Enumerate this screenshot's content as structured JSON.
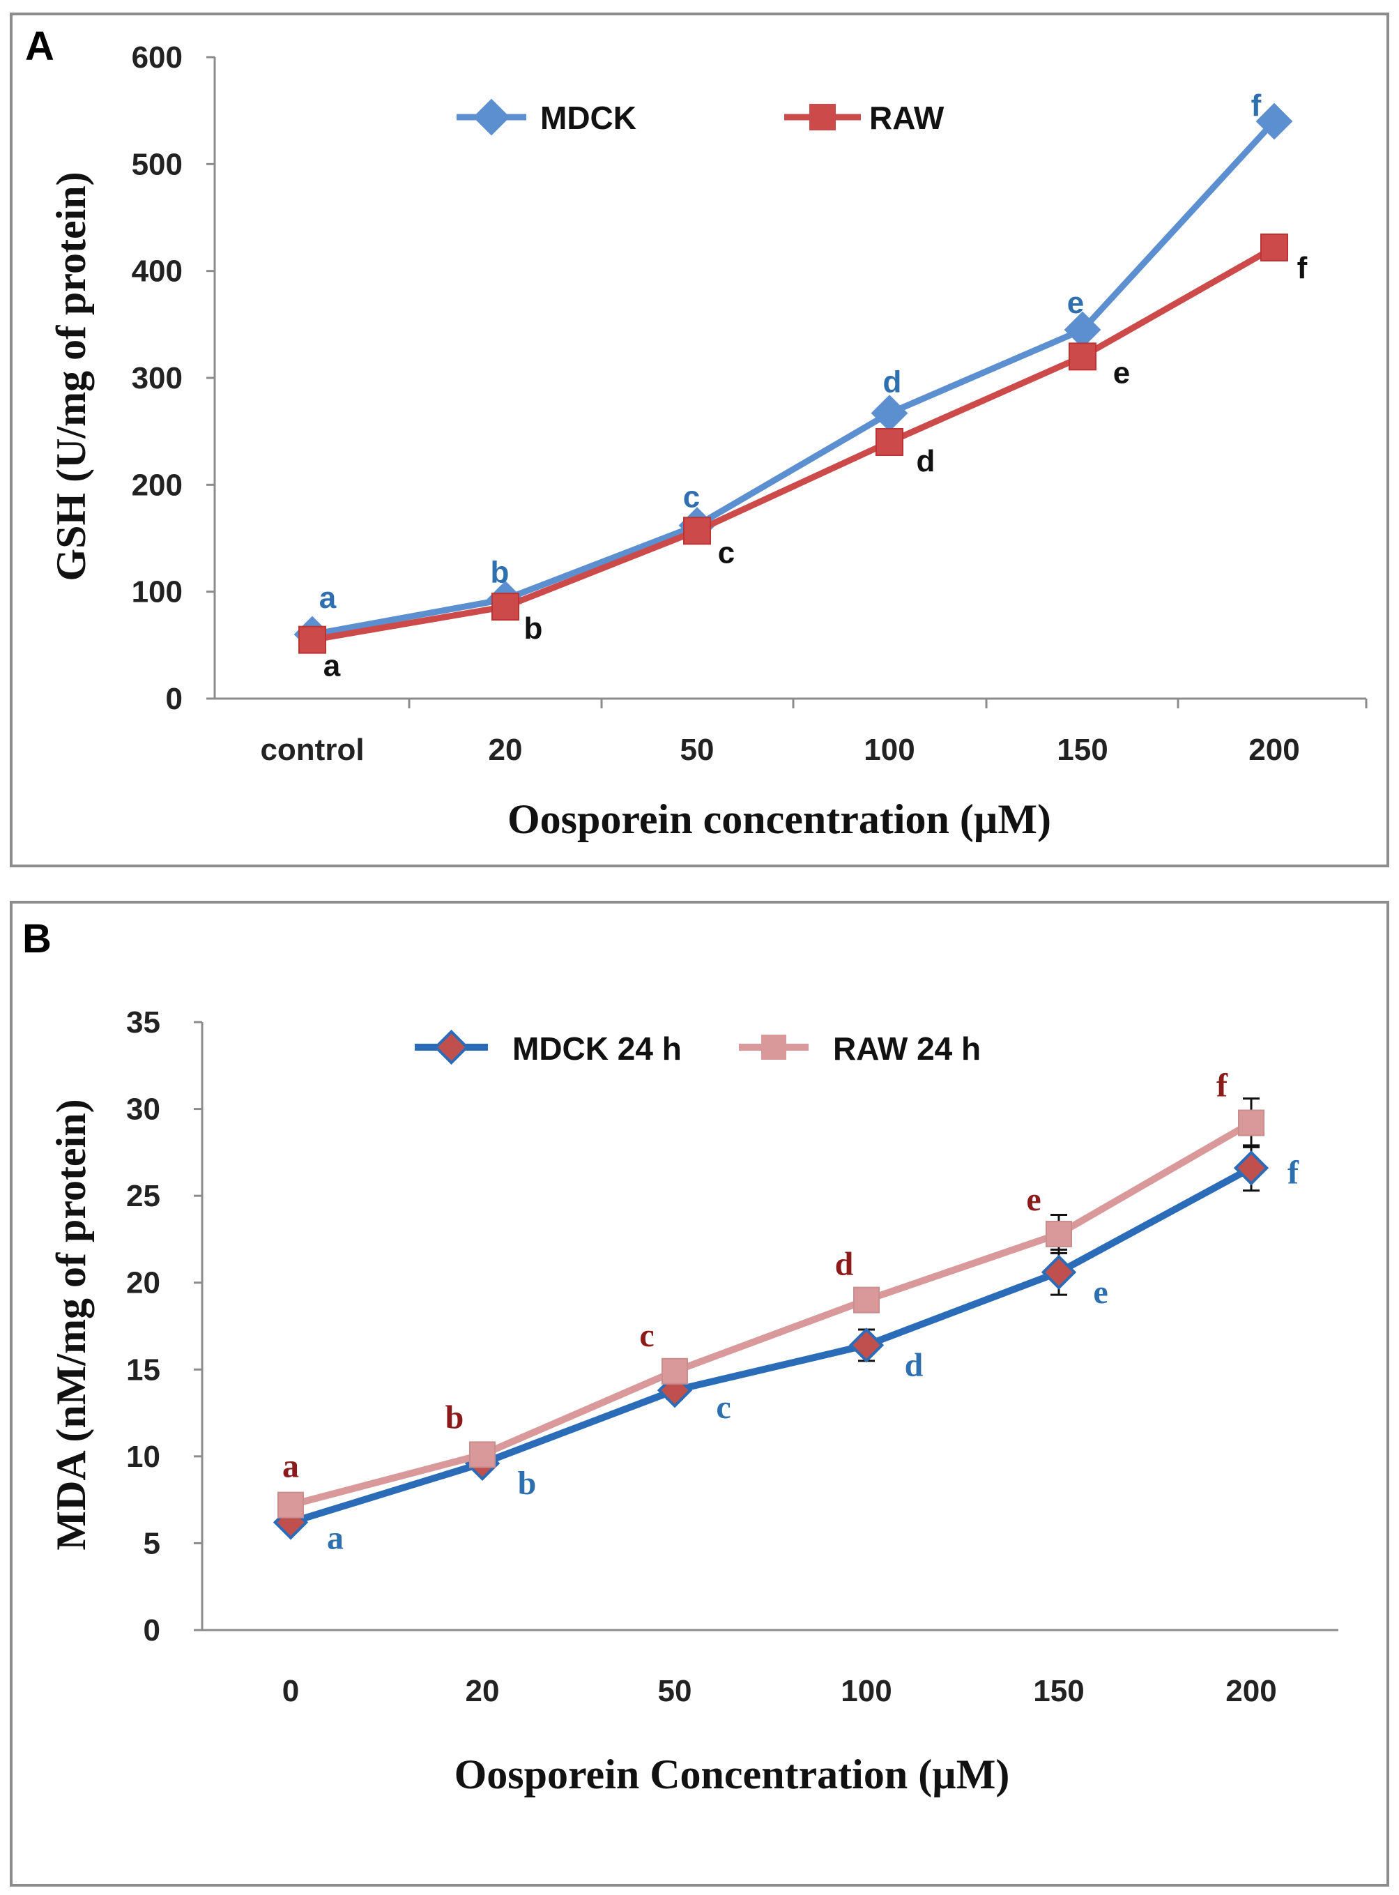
{
  "chart_data": [
    {
      "panel": "A",
      "type": "line",
      "xlabel": "Oosporein concentration (µM)",
      "ylabel": "GSH (U/mg of protein)",
      "ylim": [
        0,
        600
      ],
      "yticks": [
        "0",
        "100",
        "200",
        "300",
        "400",
        "500",
        "600"
      ],
      "categories": [
        "control",
        "20",
        "50",
        "100",
        "150",
        "200"
      ],
      "series": [
        {
          "name": "MDCK",
          "color": "#5b8fd0",
          "marker": "diamond",
          "letter_color": "#2e6fb0",
          "values": [
            60,
            93,
            162,
            267,
            345,
            540
          ],
          "letters": [
            "a",
            "b",
            "c",
            "d",
            "e",
            "f"
          ]
        },
        {
          "name": "RAW",
          "color": "#cc4a4a",
          "marker": "square",
          "letter_color": "#111111",
          "values": [
            55,
            86,
            157,
            240,
            320,
            422
          ],
          "letters": [
            "a",
            "b",
            "c",
            "d",
            "e",
            "f"
          ]
        }
      ]
    },
    {
      "panel": "B",
      "type": "line",
      "xlabel": "Oosporein Concentration (µM)",
      "ylabel": "MDA (nM/mg of protein)",
      "ylim": [
        0,
        35
      ],
      "yticks": [
        "0",
        "5",
        "10",
        "15",
        "20",
        "25",
        "30",
        "35"
      ],
      "categories": [
        "0",
        "20",
        "50",
        "100",
        "150",
        "200"
      ],
      "series": [
        {
          "name": "MDCK 24 h",
          "color": "#2b6cb8",
          "marker": "diamond",
          "marker_fill": "#c0504d",
          "letter_color": "#2e6fb0",
          "values": [
            6.2,
            9.6,
            13.8,
            16.4,
            20.6,
            26.6
          ],
          "errors": [
            0.3,
            0.4,
            0.5,
            0.9,
            1.3,
            1.3
          ],
          "letters": [
            "a",
            "b",
            "c",
            "d",
            "e",
            "f"
          ]
        },
        {
          "name": "RAW 24 h",
          "color": "#d9999a",
          "marker": "square",
          "letter_color": "#8b1a1a",
          "values": [
            7.2,
            10.1,
            14.9,
            19.0,
            22.8,
            29.2
          ],
          "errors": [
            0.3,
            0.4,
            0.4,
            0.5,
            1.1,
            1.4
          ],
          "letters": [
            "a",
            "b",
            "c",
            "d",
            "e",
            "f"
          ]
        }
      ]
    }
  ]
}
